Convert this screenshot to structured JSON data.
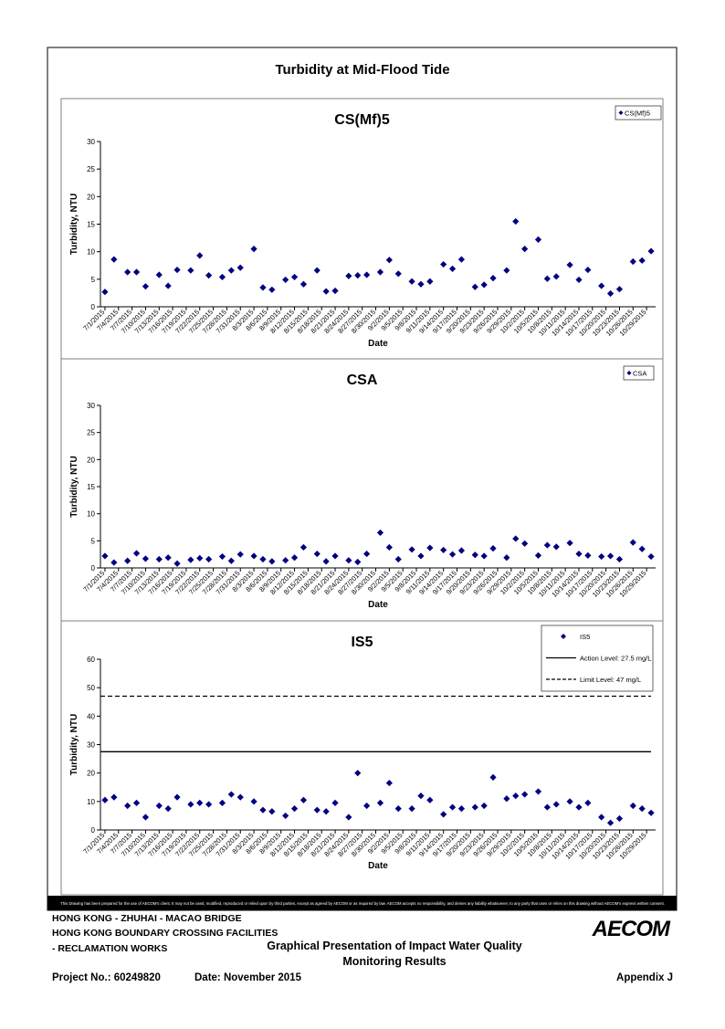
{
  "page": {
    "title": "Turbidity at Mid-Flood Tide",
    "disclaimer": "This Drawing has been prepared for the use of AECOM's client. It may not be used, modified, reproduced or relied upon by third parties, except as agreed by AECOM or as required by law. AECOM accepts no responsibility, and denies any liability whatsoever, to any party that uses or relies on this drawing without AECOM's express written consent."
  },
  "footer": {
    "line1": "HONG KONG - ZHUHAI - MACAO BRIDGE",
    "line2": "HONG KONG BOUNDARY CROSSING FACILITIES",
    "line3": "- RECLAMATION WORKS",
    "caption1": "Graphical Presentation of Impact Water Quality",
    "caption2": "Monitoring Results",
    "logo": "AECOM",
    "project": "Project No.: 60249820",
    "date": "Date: November 2015",
    "appendix": "Appendix J"
  },
  "chart_data": [
    {
      "type": "scatter",
      "title": "CS(Mf)5",
      "x_label": "Date",
      "y_label": "Turbidity, NTU",
      "legend": "upper right",
      "x": [
        "7/1/2015",
        "7/3/2015",
        "7/6/2015",
        "7/8/2015",
        "7/10/2015",
        "7/13/2015",
        "7/15/2015",
        "7/17/2015",
        "7/20/2015",
        "7/22/2015",
        "7/24/2015",
        "7/27/2015",
        "7/29/2015",
        "7/31/2015",
        "8/3/2015",
        "8/5/2015",
        "8/7/2015",
        "8/10/2015",
        "8/12/2015",
        "8/14/2015",
        "8/17/2015",
        "8/19/2015",
        "8/21/2015",
        "8/24/2015",
        "8/26/2015",
        "8/28/2015",
        "8/31/2015",
        "9/2/2015",
        "9/4/2015",
        "9/7/2015",
        "9/9/2015",
        "9/11/2015",
        "9/14/2015",
        "9/16/2015",
        "9/18/2015",
        "9/21/2015",
        "9/23/2015",
        "9/25/2015",
        "9/28/2015",
        "9/30/2015",
        "10/2/2015",
        "10/5/2015",
        "10/7/2015",
        "10/9/2015",
        "10/12/2015",
        "10/14/2015",
        "10/16/2015",
        "10/19/2015",
        "10/21/2015",
        "10/23/2015",
        "10/26/2015",
        "10/28/2015",
        "10/30/2015"
      ],
      "series": [
        {
          "name": "CS(Mf)5",
          "color": "#000080",
          "values": [
            2.7,
            8.6,
            6.3,
            6.3,
            3.7,
            5.8,
            3.8,
            6.7,
            6.6,
            9.3,
            5.7,
            5.4,
            6.6,
            7.1,
            10.5,
            3.5,
            3.1,
            4.9,
            5.4,
            4.1,
            6.6,
            2.8,
            2.9,
            5.6,
            5.7,
            5.8,
            6.3,
            8.5,
            6.0,
            4.6,
            4.1,
            4.6,
            7.7,
            6.9,
            8.6,
            3.6,
            4.0,
            5.2,
            6.6,
            15.5,
            10.5,
            12.2,
            5.1,
            5.5,
            7.6,
            4.9,
            6.7,
            3.8,
            2.4,
            3.2,
            8.2,
            8.4,
            10.1
          ]
        }
      ],
      "xlim": [
        "6/30/2015",
        "10/31/2015"
      ],
      "ylim": [
        0,
        30
      ],
      "yticks": [
        0,
        5,
        10,
        15,
        20,
        25,
        30
      ],
      "xticks": [
        "7/1/2015",
        "7/4/2015",
        "7/7/2015",
        "7/10/2015",
        "7/13/2015",
        "7/16/2015",
        "7/19/2015",
        "7/22/2015",
        "7/25/2015",
        "7/28/2015",
        "7/31/2015",
        "8/3/2015",
        "8/6/2015",
        "8/9/2015",
        "8/12/2015",
        "8/15/2015",
        "8/18/2015",
        "8/21/2015",
        "8/24/2015",
        "8/27/2015",
        "8/30/2015",
        "9/2/2015",
        "9/5/2015",
        "9/8/2015",
        "9/11/2015",
        "9/14/2015",
        "9/17/2015",
        "9/20/2015",
        "9/23/2015",
        "9/26/2015",
        "9/29/2015",
        "10/2/2015",
        "10/5/2015",
        "10/8/2015",
        "10/11/2015",
        "10/14/2015",
        "10/17/2015",
        "10/20/2015",
        "10/23/2015",
        "10/26/2015",
        "10/29/2015"
      ]
    },
    {
      "type": "scatter",
      "title": "CSA",
      "x_label": "Date",
      "y_label": "Turbidity, NTU",
      "legend": "upper right",
      "x": [
        "7/1/2015",
        "7/3/2015",
        "7/6/2015",
        "7/8/2015",
        "7/10/2015",
        "7/13/2015",
        "7/15/2015",
        "7/17/2015",
        "7/20/2015",
        "7/22/2015",
        "7/24/2015",
        "7/27/2015",
        "7/29/2015",
        "7/31/2015",
        "8/3/2015",
        "8/5/2015",
        "8/7/2015",
        "8/10/2015",
        "8/12/2015",
        "8/14/2015",
        "8/17/2015",
        "8/19/2015",
        "8/21/2015",
        "8/24/2015",
        "8/26/2015",
        "8/28/2015",
        "8/31/2015",
        "9/2/2015",
        "9/4/2015",
        "9/7/2015",
        "9/9/2015",
        "9/11/2015",
        "9/14/2015",
        "9/16/2015",
        "9/18/2015",
        "9/21/2015",
        "9/23/2015",
        "9/25/2015",
        "9/28/2015",
        "9/30/2015",
        "10/2/2015",
        "10/5/2015",
        "10/7/2015",
        "10/9/2015",
        "10/12/2015",
        "10/14/2015",
        "10/16/2015",
        "10/19/2015",
        "10/21/2015",
        "10/23/2015",
        "10/26/2015",
        "10/28/2015",
        "10/30/2015"
      ],
      "series": [
        {
          "name": "CSA",
          "color": "#000080",
          "values": [
            2.2,
            1.0,
            1.3,
            2.7,
            1.7,
            1.6,
            1.9,
            0.8,
            1.5,
            1.8,
            1.6,
            2.1,
            1.3,
            2.5,
            2.2,
            1.6,
            1.2,
            1.4,
            1.9,
            3.8,
            2.6,
            1.2,
            2.2,
            1.4,
            1.1,
            2.6,
            6.5,
            3.8,
            1.6,
            3.4,
            2.2,
            3.7,
            3.3,
            2.5,
            3.2,
            2.4,
            2.2,
            3.6,
            1.9,
            5.4,
            4.5,
            2.3,
            4.2,
            3.9,
            4.6,
            2.6,
            2.3,
            2.1,
            2.2,
            1.6,
            4.7,
            3.5,
            2.1
          ]
        }
      ],
      "xlim": [
        "6/30/2015",
        "10/31/2015"
      ],
      "ylim": [
        0,
        30
      ],
      "yticks": [
        0,
        5,
        10,
        15,
        20,
        25,
        30
      ],
      "xticks": [
        "7/1/2015",
        "7/4/2015",
        "7/7/2015",
        "7/10/2015",
        "7/13/2015",
        "7/16/2015",
        "7/19/2015",
        "7/22/2015",
        "7/25/2015",
        "7/28/2015",
        "7/31/2015",
        "8/3/2015",
        "8/6/2015",
        "8/9/2015",
        "8/12/2015",
        "8/15/2015",
        "8/18/2015",
        "8/21/2015",
        "8/24/2015",
        "8/27/2015",
        "8/30/2015",
        "9/2/2015",
        "9/5/2015",
        "9/8/2015",
        "9/11/2015",
        "9/14/2015",
        "9/17/2015",
        "9/20/2015",
        "9/23/2015",
        "9/26/2015",
        "9/29/2015",
        "10/2/2015",
        "10/5/2015",
        "10/8/2015",
        "10/11/2015",
        "10/14/2015",
        "10/17/2015",
        "10/20/2015",
        "10/23/2015",
        "10/26/2015",
        "10/29/2015"
      ]
    },
    {
      "type": "scatter",
      "title": "IS5",
      "x_label": "Date",
      "y_label": "Turbidity, NTU",
      "legend": "upper right",
      "x": [
        "7/1/2015",
        "7/3/2015",
        "7/6/2015",
        "7/8/2015",
        "7/10/2015",
        "7/13/2015",
        "7/15/2015",
        "7/17/2015",
        "7/20/2015",
        "7/22/2015",
        "7/24/2015",
        "7/27/2015",
        "7/29/2015",
        "7/31/2015",
        "8/3/2015",
        "8/5/2015",
        "8/7/2015",
        "8/10/2015",
        "8/12/2015",
        "8/14/2015",
        "8/17/2015",
        "8/19/2015",
        "8/21/2015",
        "8/24/2015",
        "8/26/2015",
        "8/28/2015",
        "8/31/2015",
        "9/2/2015",
        "9/4/2015",
        "9/7/2015",
        "9/9/2015",
        "9/11/2015",
        "9/14/2015",
        "9/16/2015",
        "9/18/2015",
        "9/21/2015",
        "9/23/2015",
        "9/25/2015",
        "9/28/2015",
        "9/30/2015",
        "10/2/2015",
        "10/5/2015",
        "10/7/2015",
        "10/9/2015",
        "10/12/2015",
        "10/14/2015",
        "10/16/2015",
        "10/19/2015",
        "10/21/2015",
        "10/23/2015",
        "10/26/2015",
        "10/28/2015",
        "10/30/2015"
      ],
      "series": [
        {
          "name": "IS5",
          "color": "#000080",
          "values": [
            10.5,
            11.5,
            8.5,
            9.5,
            4.5,
            8.5,
            7.5,
            11.5,
            9,
            9.5,
            9,
            9.5,
            12.5,
            11.5,
            10,
            7,
            6.5,
            5,
            7.5,
            10.5,
            7,
            6.5,
            9.5,
            4.5,
            20,
            8.5,
            9.5,
            16.5,
            7.5,
            7.5,
            12,
            10.5,
            5.5,
            8,
            7.5,
            8,
            8.5,
            18.5,
            11,
            12,
            12.5,
            13.5,
            8,
            9,
            10,
            8,
            9.5,
            4.5,
            2.5,
            4,
            8.5,
            7.5,
            6
          ]
        }
      ],
      "reference_lines": [
        {
          "name": "Action Level: 27.5 mg/L",
          "value": 27.5,
          "style": "solid",
          "color": "#000000"
        },
        {
          "name": "Limit Level: 47 mg/L",
          "value": 47,
          "style": "dashed",
          "color": "#000000"
        }
      ],
      "xlim": [
        "6/30/2015",
        "10/31/2015"
      ],
      "ylim": [
        0,
        60
      ],
      "yticks": [
        0,
        10,
        20,
        30,
        40,
        50,
        60
      ],
      "xticks": [
        "7/1/2015",
        "7/4/2015",
        "7/7/2015",
        "7/10/2015",
        "7/13/2015",
        "7/16/2015",
        "7/19/2015",
        "7/22/2015",
        "7/25/2015",
        "7/28/2015",
        "7/31/2015",
        "8/3/2015",
        "8/6/2015",
        "8/9/2015",
        "8/12/2015",
        "8/15/2015",
        "8/18/2015",
        "8/21/2015",
        "8/24/2015",
        "8/27/2015",
        "8/30/2015",
        "9/2/2015",
        "9/5/2015",
        "9/8/2015",
        "9/11/2015",
        "9/14/2015",
        "9/17/2015",
        "9/20/2015",
        "9/23/2015",
        "9/26/2015",
        "9/29/2015",
        "10/2/2015",
        "10/5/2015",
        "10/8/2015",
        "10/11/2015",
        "10/14/2015",
        "10/17/2015",
        "10/20/2015",
        "10/23/2015",
        "10/26/2015",
        "10/29/2015"
      ]
    }
  ]
}
